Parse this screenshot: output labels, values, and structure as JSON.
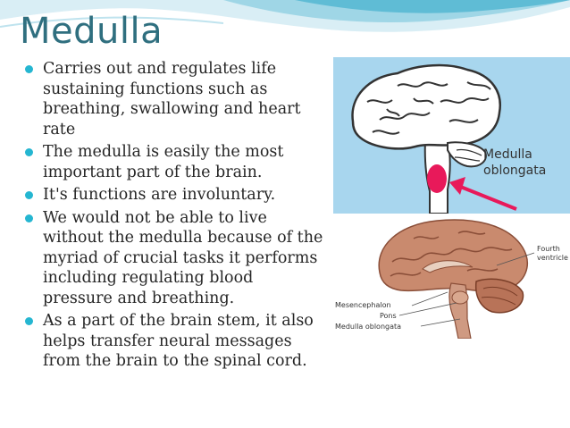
{
  "slide": {
    "title": "Medulla",
    "bullets": [
      "Carries out and regulates life sustaining functions such as breathing, swallowing and heart rate",
      "The medulla is easily the most important part of the brain.",
      "It's functions are involuntary.",
      "We would not be able to live without the medulla because of the myriad of crucial tasks it performs including regulating blood pressure and breathing.",
      "As a part of the brain stem, it also helps transfer neural messages from the brain to the spinal cord."
    ]
  },
  "figure_top": {
    "label_line1": "Medulla",
    "label_line2": "oblongata",
    "background_color": "#a8d6ee",
    "highlight_color": "#e8195a"
  },
  "figure_bottom": {
    "labels": {
      "fourth_ventricle_line1": "Fourth",
      "fourth_ventricle_line2": "ventricle",
      "mesencephalon": "Mesencephalon",
      "pons": "Pons",
      "medulla_oblongata": "Medulla oblongata"
    }
  },
  "theme": {
    "title_color": "#2f6f7f",
    "bullet_color": "#25b6d1"
  }
}
